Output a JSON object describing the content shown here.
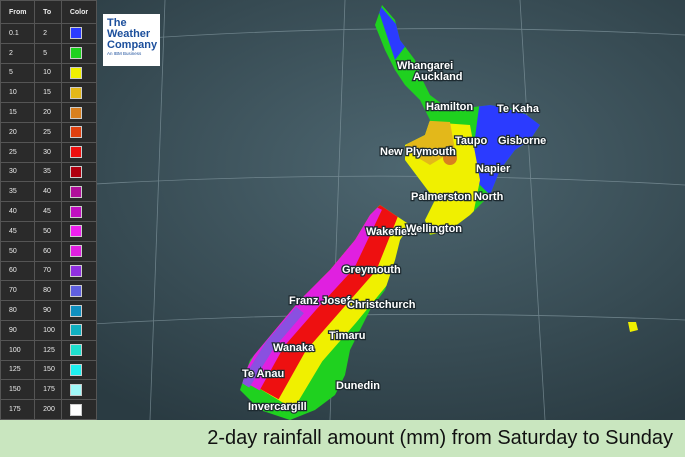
{
  "legend": {
    "headers": [
      "From",
      "To",
      "Color"
    ],
    "rows": [
      {
        "from": 0.1,
        "to": 2,
        "color": "#2b3bff"
      },
      {
        "from": 2,
        "to": 5,
        "color": "#1fd11f"
      },
      {
        "from": 5,
        "to": 10,
        "color": "#f0f000"
      },
      {
        "from": 10,
        "to": 15,
        "color": "#e3b81a"
      },
      {
        "from": 15,
        "to": 20,
        "color": "#d88020"
      },
      {
        "from": 20,
        "to": 25,
        "color": "#e04010"
      },
      {
        "from": 25,
        "to": 30,
        "color": "#ee1010"
      },
      {
        "from": 30,
        "to": 35,
        "color": "#b00010"
      },
      {
        "from": 35,
        "to": 40,
        "color": "#b0109a"
      },
      {
        "from": 40,
        "to": 45,
        "color": "#c010c0"
      },
      {
        "from": 45,
        "to": 50,
        "color": "#ee20ee"
      },
      {
        "from": 50,
        "to": 60,
        "color": "#e020e0"
      },
      {
        "from": 60,
        "to": 70,
        "color": "#9030e0"
      },
      {
        "from": 70,
        "to": 80,
        "color": "#6060e0"
      },
      {
        "from": 80,
        "to": 90,
        "color": "#1090c0"
      },
      {
        "from": 90,
        "to": 100,
        "color": "#10b0c0"
      },
      {
        "from": 100,
        "to": 125,
        "color": "#20e0d0"
      },
      {
        "from": 125,
        "to": 150,
        "color": "#20f0f0"
      },
      {
        "from": 150,
        "to": 175,
        "color": "#a0f8f8"
      },
      {
        "from": 175,
        "to": 200,
        "color": "#ffffff"
      }
    ]
  },
  "logo": {
    "lines": [
      "The",
      "Weather",
      "Company"
    ],
    "tagline": "An IBM Business"
  },
  "places": [
    "Whangarei",
    "Auckland",
    "Hamilton",
    "Te Kaha",
    "Taupo",
    "Gisborne",
    "New Plymouth",
    "Napier",
    "Palmerston North",
    "Wakefield",
    "Wellington",
    "Greymouth",
    "Franz Josef",
    "Christchurch",
    "Timaru",
    "Wanaka",
    "Te Anau",
    "Dunedin",
    "Invercargill"
  ],
  "caption": "2-day rainfall amount (mm) from Saturday to Sunday"
}
